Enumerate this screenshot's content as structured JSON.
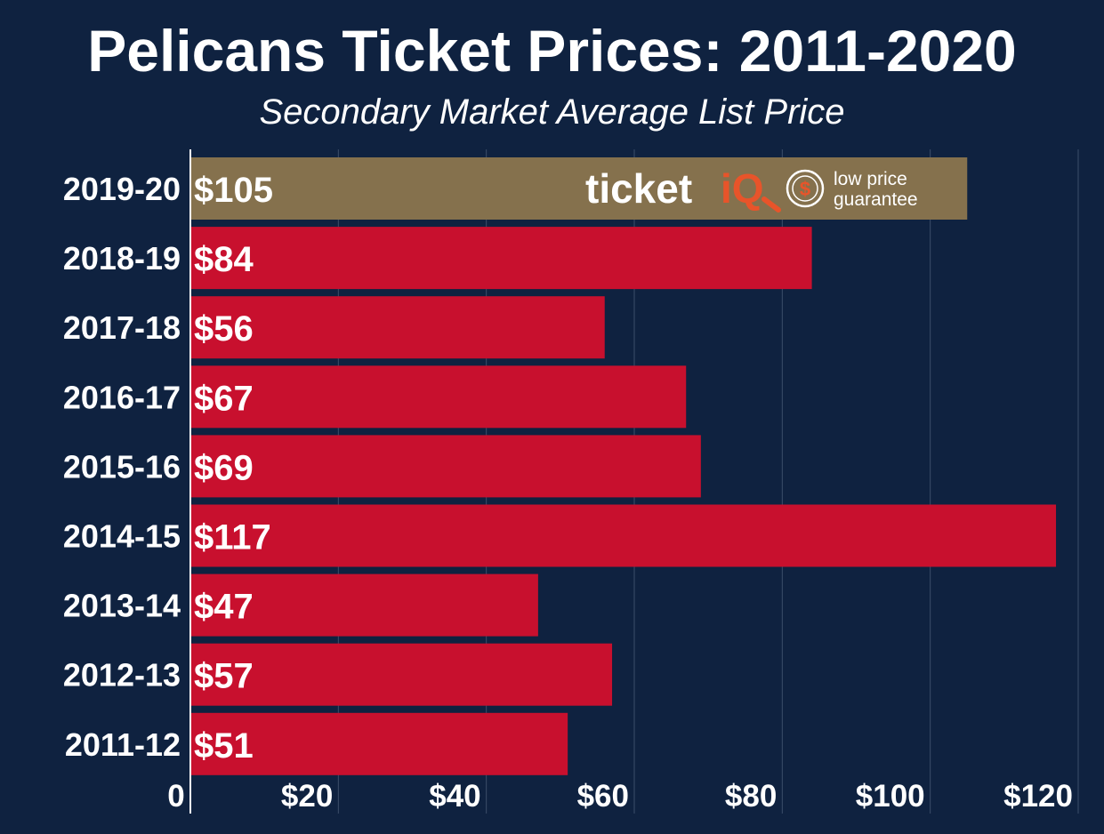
{
  "chart_data": {
    "type": "bar",
    "orientation": "horizontal",
    "title": "Pelicans Ticket Prices: 2011-2020",
    "subtitle": "Secondary Market Average List Price",
    "categories": [
      "2019-20",
      "2018-19",
      "2017-18",
      "2016-17",
      "2015-16",
      "2014-15",
      "2013-14",
      "2012-13",
      "2011-12"
    ],
    "values": [
      105,
      84,
      56,
      67,
      69,
      117,
      47,
      57,
      51
    ],
    "value_labels": [
      "$105",
      "$84",
      "$56",
      "$67",
      "$69",
      "$117",
      "$47",
      "$57",
      "$51"
    ],
    "xlim": [
      0,
      120
    ],
    "x_ticks": [
      0,
      20,
      40,
      60,
      80,
      100,
      120
    ],
    "x_tick_labels": [
      "0",
      "$20",
      "$40",
      "$60",
      "$80",
      "$100",
      "$120"
    ],
    "xlabel": "",
    "ylabel": "",
    "grid": true,
    "highlight_index": 0
  },
  "colors": {
    "background": "#0f2240",
    "bar": "#c8102e",
    "highlight_bar": "#85714d",
    "gridline": "#3b4d6a",
    "text": "#ffffff",
    "logo_accent": "#e8542a"
  },
  "logo": {
    "brand_main": "ticket",
    "brand_accent": "iQ",
    "icons": [
      "magnifier-icon",
      "dollar-badge-icon"
    ],
    "tagline_line1": "low price",
    "tagline_line2": "guarantee"
  }
}
